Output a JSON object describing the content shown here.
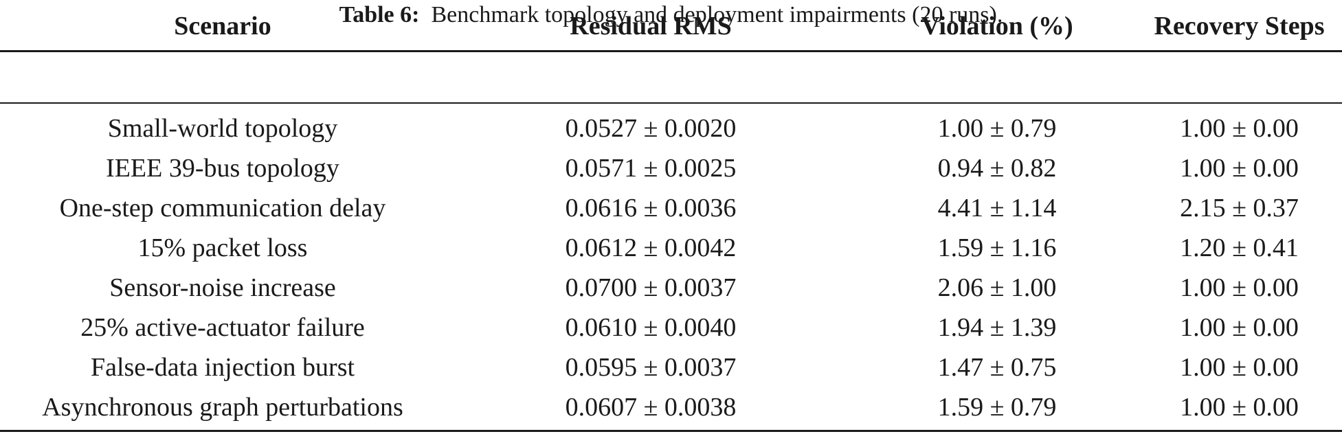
{
  "caption": {
    "label": "Table 6:",
    "text": "Benchmark topology and deployment impairments (20 runs)."
  },
  "table": {
    "headers": [
      "Scenario",
      "Residual RMS",
      "Violation (%)",
      "Recovery Steps"
    ],
    "rows": [
      [
        "Small-world topology",
        "0.0527 ± 0.0020",
        "1.00 ± 0.79",
        "1.00 ± 0.00"
      ],
      [
        "IEEE 39-bus topology",
        "0.0571 ± 0.0025",
        "0.94 ± 0.82",
        "1.00 ± 0.00"
      ],
      [
        "One-step communication delay",
        "0.0616 ± 0.0036",
        "4.41 ± 1.14",
        "2.15 ± 0.37"
      ],
      [
        "15% packet loss",
        "0.0612 ± 0.0042",
        "1.59 ± 1.16",
        "1.20 ± 0.41"
      ],
      [
        "Sensor-noise increase",
        "0.0700 ± 0.0037",
        "2.06 ± 1.00",
        "1.00 ± 0.00"
      ],
      [
        "25% active-actuator failure",
        "0.0610 ± 0.0040",
        "1.94 ± 1.39",
        "1.00 ± 0.00"
      ],
      [
        "False-data injection burst",
        "0.0595 ± 0.0037",
        "1.47 ± 0.75",
        "1.00 ± 0.00"
      ],
      [
        "Asynchronous graph perturbations",
        "0.0607 ± 0.0038",
        "1.59 ± 0.79",
        "1.00 ± 0.00"
      ]
    ]
  }
}
